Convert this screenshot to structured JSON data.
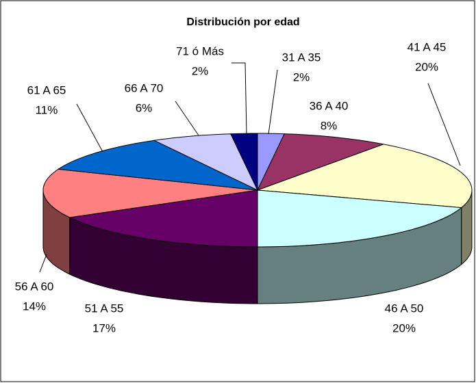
{
  "chart_data": {
    "type": "pie",
    "title": "Distribución por edad",
    "categories": [
      "31 A 35",
      "36 A 40",
      "41 A 45",
      "46 A 50",
      "51 A 55",
      "56 A 60",
      "61 A 65",
      "66 A 70",
      "71 ó Más"
    ],
    "values": [
      2,
      8,
      20,
      20,
      17,
      14,
      11,
      6,
      2
    ],
    "value_labels": [
      "2%",
      "8%",
      "20%",
      "20%",
      "17%",
      "14%",
      "11%",
      "6%",
      "2%"
    ],
    "colors": [
      "#9999ff",
      "#993366",
      "#ffffcc",
      "#ccffff",
      "#660066",
      "#ff8080",
      "#0066cc",
      "#ccccff",
      "#000080"
    ]
  }
}
